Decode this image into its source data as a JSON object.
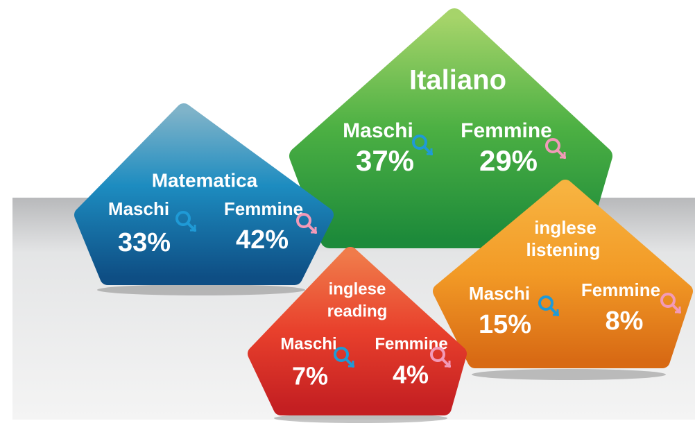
{
  "panels": [
    {
      "title": "Italiano",
      "male_label": "Maschi",
      "female_label": "Femmine",
      "male_value": "37%",
      "female_value": "29%"
    },
    {
      "title": "Matematica",
      "male_label": "Maschi",
      "female_label": "Femmine",
      "male_value": "33%",
      "female_value": "42%"
    },
    {
      "title": "inglese listening",
      "title_lines": [
        "inglese",
        "listening"
      ],
      "male_label": "Maschi",
      "female_label": "Femmine",
      "male_value": "15%",
      "female_value": "8%"
    },
    {
      "title_lines": [
        "inglese",
        "reading"
      ],
      "male_label": "Maschi",
      "female_label": "Femmine",
      "male_value": "7%",
      "female_value": "4%"
    }
  ]
}
